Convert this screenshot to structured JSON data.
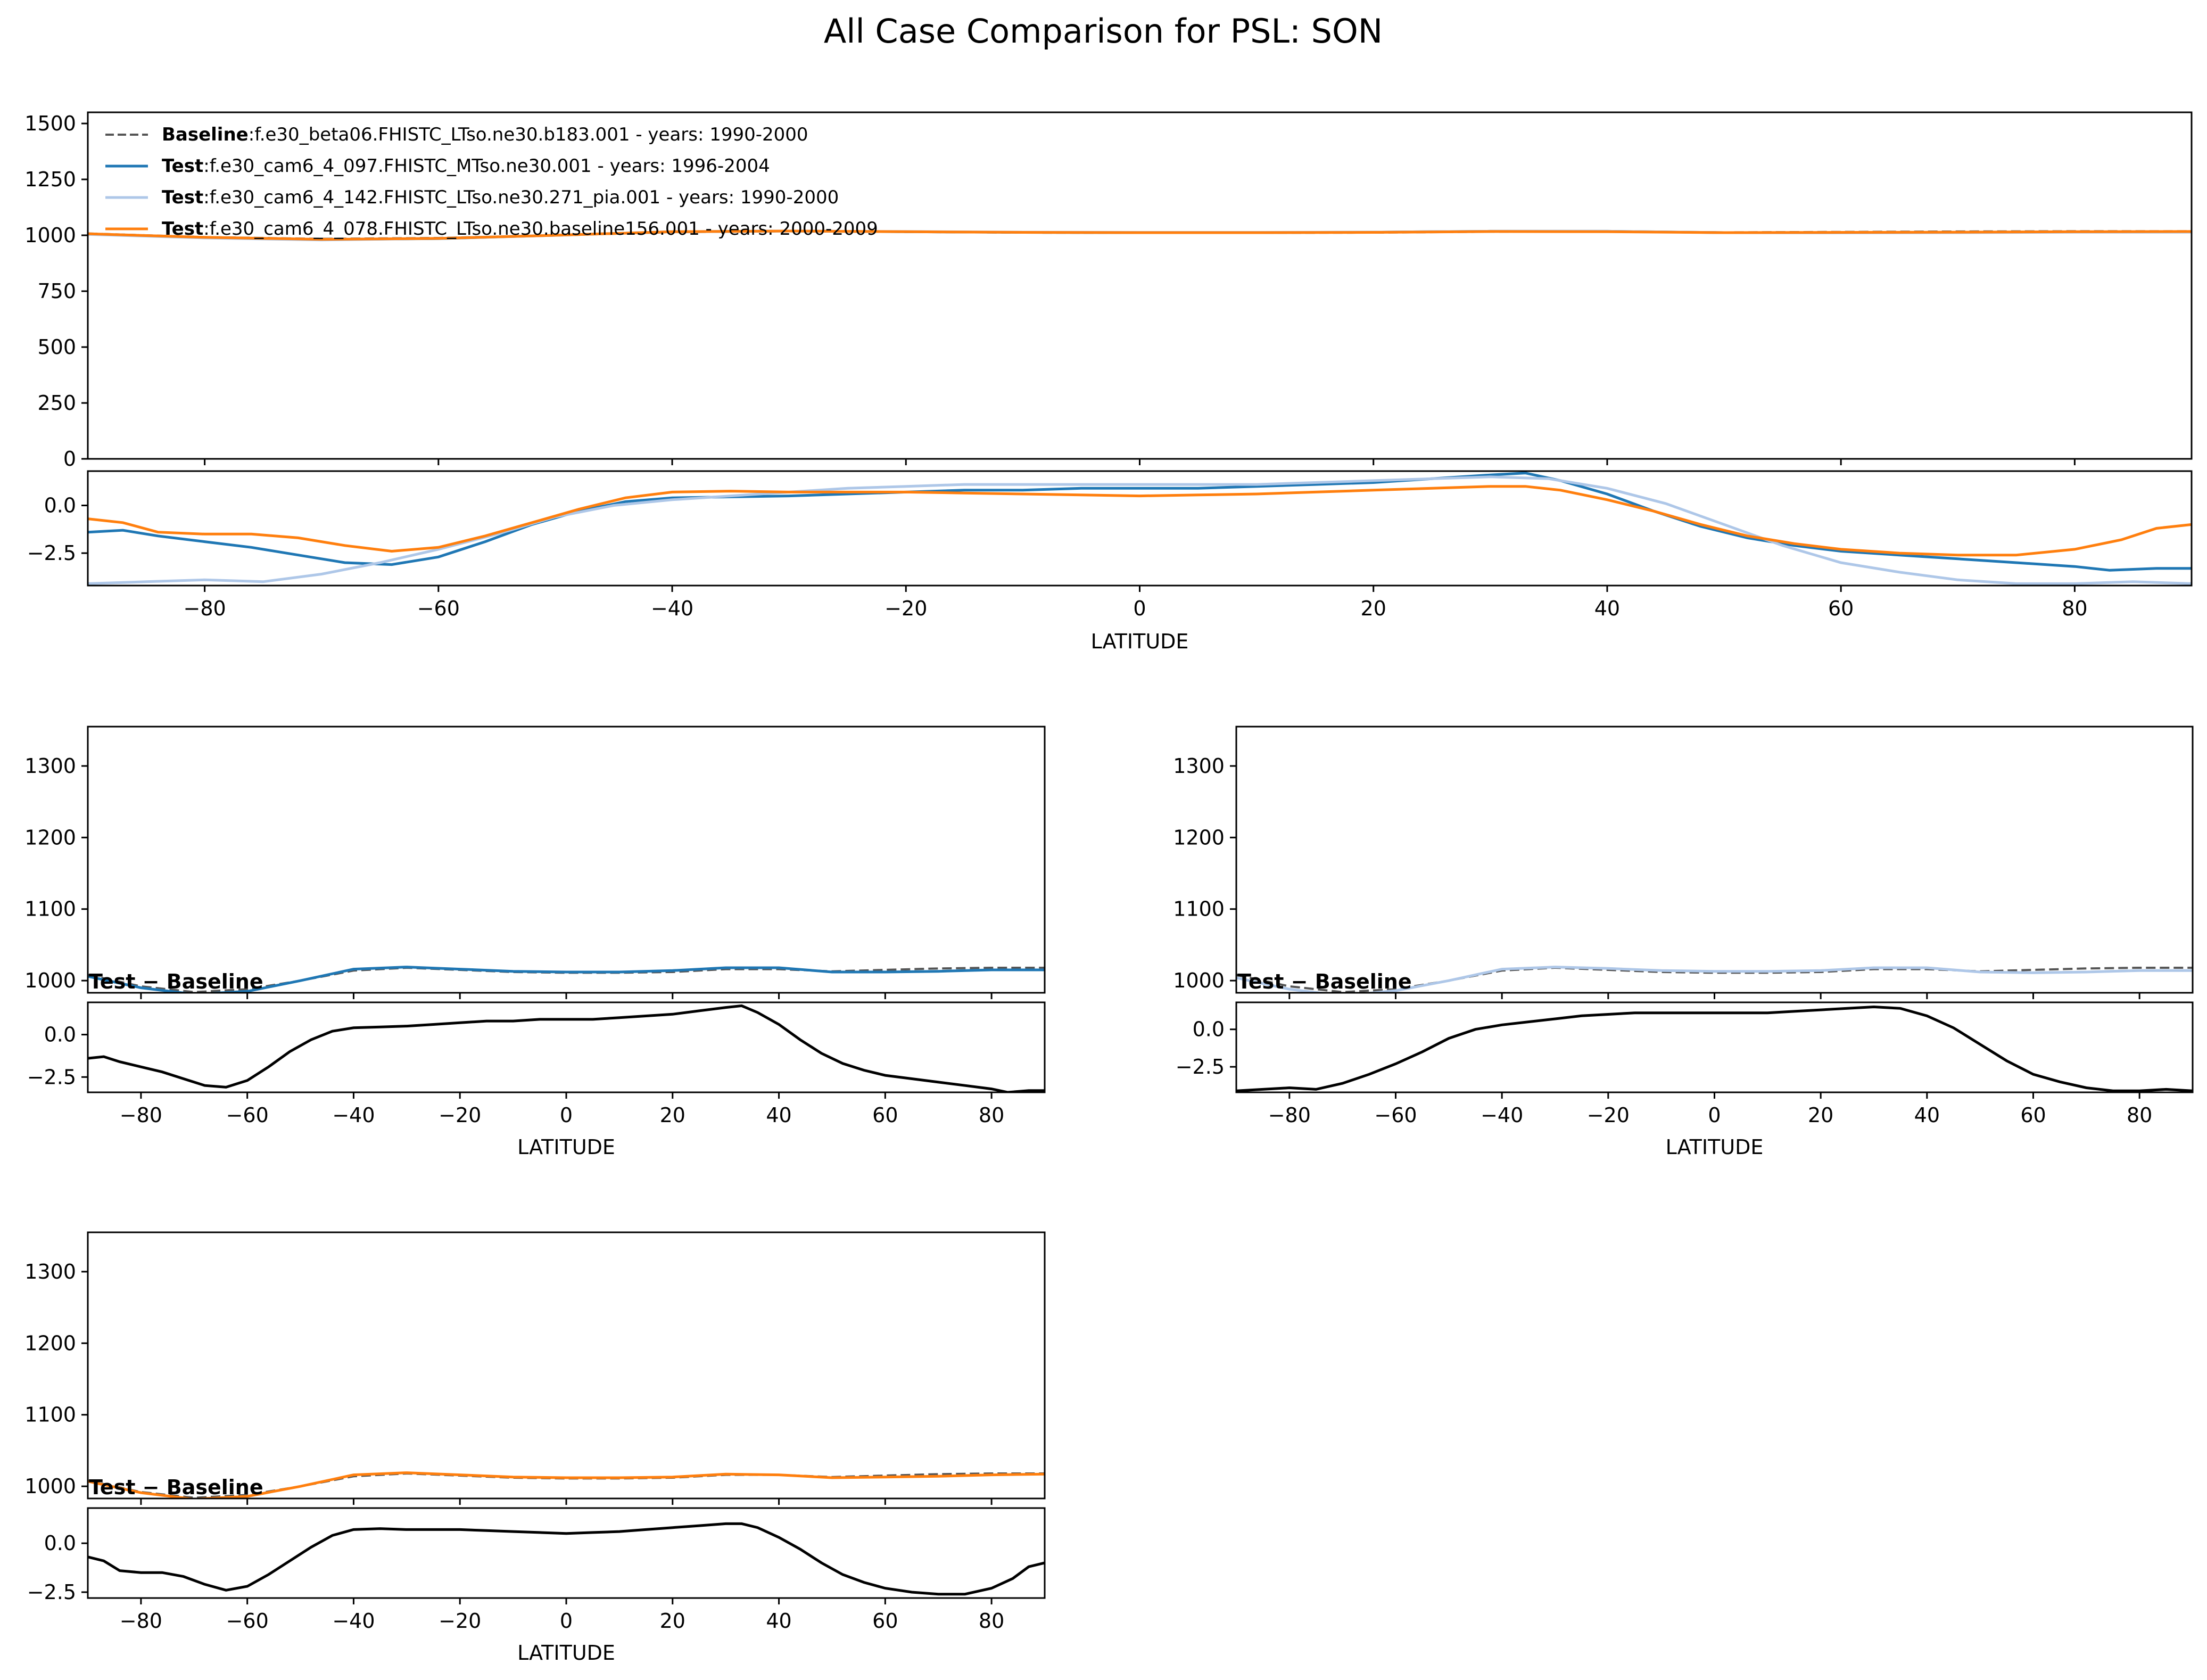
{
  "title": "All Case Comparison for PSL: SON",
  "legend": [
    {
      "role": "Baseline",
      "sep": ":",
      "case": "f.e30_beta06.FHISTC_LTso.ne30.b183.001 - years: 1990-2000",
      "color": "#555555",
      "dash": true
    },
    {
      "role": "Test",
      "sep": ":",
      "case": "f.e30_cam6_4_097.FHISTC_MTso.ne30.001 - years: 1996-2004",
      "color": "#1f77b4",
      "dash": false
    },
    {
      "role": "Test",
      "sep": ":",
      "case": "f.e30_cam6_4_142.FHISTC_LTso.ne30.271_pia.001 - years: 1990-2000",
      "color": "#aec7e8",
      "dash": false
    },
    {
      "role": "Test",
      "sep": ":",
      "case": "f.e30_cam6_4_078.FHISTC_LTso.ne30.baseline156.001 - years: 2000-2009",
      "color": "#ff7f0e",
      "dash": false
    }
  ],
  "annotation": "Test − Baseline",
  "chart_data": [
    {
      "type": "line",
      "panel": "all-cases",
      "xlabel": "LATITUDE",
      "xlim": [
        -90,
        90
      ],
      "xticks": [
        -80,
        -60,
        -40,
        -20,
        0,
        20,
        40,
        60,
        80
      ],
      "ylim": [
        0,
        1550
      ],
      "yticks": [
        0,
        250,
        500,
        750,
        1000,
        1250,
        1500
      ],
      "diff_ylim": [
        -4.2,
        1.8
      ],
      "diff_yticks": [
        0.0,
        -2.5
      ],
      "x": [
        -90,
        -80,
        -70,
        -60,
        -50,
        -40,
        -30,
        -20,
        -10,
        0,
        10,
        20,
        30,
        40,
        50,
        60,
        70,
        80,
        90
      ],
      "series": [
        {
          "name": "Baseline",
          "color": "#555555",
          "dash": true,
          "values": [
            1008,
            992,
            984,
            988,
            1000,
            1014,
            1018,
            1015,
            1012,
            1011,
            1011,
            1012,
            1016,
            1016,
            1013,
            1015,
            1017,
            1018,
            1018
          ]
        },
        {
          "name": "Test",
          "color": "#1f77b4",
          "dash": false,
          "values": [
            1006,
            990,
            981,
            985,
            1000,
            1016,
            1019,
            1016,
            1013,
            1012,
            1012,
            1014,
            1018,
            1018,
            1012,
            1012,
            1013,
            1015,
            1015
          ]
        },
        {
          "name": "Test",
          "color": "#aec7e8",
          "dash": false,
          "values": [
            1004,
            988,
            979,
            986,
            1000,
            1016,
            1019,
            1017,
            1014,
            1013,
            1013,
            1014,
            1018,
            1018,
            1012,
            1011,
            1012,
            1014,
            1014
          ]
        },
        {
          "name": "Test",
          "color": "#ff7f0e",
          "dash": false,
          "values": [
            1007,
            991,
            982,
            986,
            1000,
            1016,
            1019,
            1016,
            1013,
            1012,
            1012,
            1013,
            1017,
            1016,
            1012,
            1013,
            1014,
            1016,
            1017
          ]
        }
      ],
      "diff_series": [
        {
          "color": "#1f77b4",
          "x": [
            -90,
            -87,
            -84,
            -80,
            -76,
            -72,
            -68,
            -64,
            -60,
            -56,
            -52,
            -48,
            -44,
            -40,
            -35,
            -30,
            -25,
            -20,
            -15,
            -10,
            -5,
            0,
            5,
            10,
            15,
            20,
            25,
            30,
            33,
            36,
            40,
            44,
            48,
            52,
            56,
            60,
            65,
            70,
            75,
            80,
            83,
            87,
            90
          ],
          "values": [
            -1.4,
            -1.3,
            -1.6,
            -1.9,
            -2.2,
            -2.6,
            -3.0,
            -3.1,
            -2.7,
            -1.9,
            -1.0,
            -0.3,
            0.2,
            0.4,
            0.45,
            0.5,
            0.6,
            0.7,
            0.8,
            0.8,
            0.9,
            0.9,
            0.9,
            1.0,
            1.1,
            1.2,
            1.4,
            1.6,
            1.7,
            1.3,
            0.6,
            -0.3,
            -1.1,
            -1.7,
            -2.1,
            -2.4,
            -2.6,
            -2.8,
            -3.0,
            -3.2,
            -3.4,
            -3.3,
            -3.3
          ]
        },
        {
          "color": "#aec7e8",
          "x": [
            -90,
            -85,
            -80,
            -75,
            -70,
            -65,
            -60,
            -55,
            -50,
            -45,
            -40,
            -35,
            -30,
            -25,
            -20,
            -15,
            -10,
            -5,
            0,
            5,
            10,
            15,
            20,
            25,
            30,
            35,
            40,
            45,
            50,
            55,
            60,
            65,
            70,
            75,
            80,
            85,
            90
          ],
          "values": [
            -4.1,
            -4.0,
            -3.9,
            -4.0,
            -3.6,
            -3.0,
            -2.3,
            -1.5,
            -0.6,
            0.0,
            0.3,
            0.5,
            0.7,
            0.9,
            1.0,
            1.1,
            1.1,
            1.1,
            1.1,
            1.1,
            1.1,
            1.2,
            1.3,
            1.4,
            1.5,
            1.4,
            0.9,
            0.1,
            -1.0,
            -2.1,
            -3.0,
            -3.5,
            -3.9,
            -4.1,
            -4.1,
            -4.0,
            -4.1
          ]
        },
        {
          "color": "#ff7f0e",
          "x": [
            -90,
            -87,
            -84,
            -80,
            -76,
            -72,
            -68,
            -64,
            -60,
            -56,
            -52,
            -48,
            -44,
            -40,
            -35,
            -30,
            -25,
            -20,
            -15,
            -10,
            -5,
            0,
            5,
            10,
            15,
            20,
            25,
            30,
            33,
            36,
            40,
            44,
            48,
            52,
            56,
            60,
            65,
            70,
            75,
            80,
            84,
            87,
            90
          ],
          "values": [
            -0.7,
            -0.9,
            -1.4,
            -1.5,
            -1.5,
            -1.7,
            -2.1,
            -2.4,
            -2.2,
            -1.6,
            -0.9,
            -0.2,
            0.4,
            0.7,
            0.75,
            0.7,
            0.7,
            0.7,
            0.65,
            0.6,
            0.55,
            0.5,
            0.55,
            0.6,
            0.7,
            0.8,
            0.9,
            1.0,
            1.0,
            0.8,
            0.3,
            -0.3,
            -1.0,
            -1.6,
            -2.0,
            -2.3,
            -2.5,
            -2.6,
            -2.6,
            -2.3,
            -1.8,
            -1.2,
            -1.0
          ]
        }
      ]
    },
    {
      "type": "line",
      "panel": "test-1",
      "xlabel": "LATITUDE",
      "xlim": [
        -90,
        90
      ],
      "xticks": [
        -80,
        -60,
        -40,
        -20,
        0,
        20,
        40,
        60,
        80
      ],
      "ylim": [
        983,
        1355
      ],
      "yticks": [
        1000,
        1100,
        1200,
        1300
      ],
      "diff_ylim": [
        -3.4,
        1.9
      ],
      "diff_yticks": [
        0.0,
        -2.5
      ],
      "x": [
        -90,
        -80,
        -70,
        -60,
        -50,
        -40,
        -30,
        -20,
        -10,
        0,
        10,
        20,
        30,
        40,
        50,
        60,
        70,
        80,
        90
      ],
      "series": [
        {
          "name": "Baseline",
          "color": "#555555",
          "dash": true,
          "values": [
            1008,
            992,
            984,
            988,
            1000,
            1014,
            1018,
            1015,
            1012,
            1011,
            1011,
            1012,
            1016,
            1016,
            1013,
            1015,
            1017,
            1018,
            1018
          ]
        },
        {
          "name": "Test",
          "color": "#1f77b4",
          "dash": false,
          "values": [
            1006,
            990,
            981,
            985,
            1000,
            1016,
            1019,
            1016,
            1013,
            1012,
            1012,
            1014,
            1018,
            1018,
            1012,
            1012,
            1013,
            1015,
            1015
          ]
        }
      ],
      "diff": {
        "color": "#000000",
        "x": [
          -90,
          -87,
          -84,
          -80,
          -76,
          -72,
          -68,
          -64,
          -60,
          -56,
          -52,
          -48,
          -44,
          -40,
          -35,
          -30,
          -25,
          -20,
          -15,
          -10,
          -5,
          0,
          5,
          10,
          15,
          20,
          25,
          30,
          33,
          36,
          40,
          44,
          48,
          52,
          56,
          60,
          65,
          70,
          75,
          80,
          83,
          87,
          90
        ],
        "values": [
          -1.4,
          -1.3,
          -1.6,
          -1.9,
          -2.2,
          -2.6,
          -3.0,
          -3.1,
          -2.7,
          -1.9,
          -1.0,
          -0.3,
          0.2,
          0.4,
          0.45,
          0.5,
          0.6,
          0.7,
          0.8,
          0.8,
          0.9,
          0.9,
          0.9,
          1.0,
          1.1,
          1.2,
          1.4,
          1.6,
          1.7,
          1.3,
          0.6,
          -0.3,
          -1.1,
          -1.7,
          -2.1,
          -2.4,
          -2.6,
          -2.8,
          -3.0,
          -3.2,
          -3.4,
          -3.3,
          -3.3
        ]
      }
    },
    {
      "type": "line",
      "panel": "test-2",
      "xlabel": "LATITUDE",
      "xlim": [
        -90,
        90
      ],
      "xticks": [
        -80,
        -60,
        -40,
        -20,
        0,
        20,
        40,
        60,
        80
      ],
      "ylim": [
        983,
        1355
      ],
      "yticks": [
        1000,
        1100,
        1200,
        1300
      ],
      "diff_ylim": [
        -4.2,
        1.8
      ],
      "diff_yticks": [
        0.0,
        -2.5
      ],
      "x": [
        -90,
        -80,
        -70,
        -60,
        -50,
        -40,
        -30,
        -20,
        -10,
        0,
        10,
        20,
        30,
        40,
        50,
        60,
        70,
        80,
        90
      ],
      "series": [
        {
          "name": "Baseline",
          "color": "#555555",
          "dash": true,
          "values": [
            1008,
            992,
            984,
            988,
            1000,
            1014,
            1018,
            1015,
            1012,
            1011,
            1011,
            1012,
            1016,
            1016,
            1013,
            1015,
            1017,
            1018,
            1018
          ]
        },
        {
          "name": "Test",
          "color": "#aec7e8",
          "dash": false,
          "values": [
            1004,
            988,
            979,
            986,
            1000,
            1016,
            1019,
            1017,
            1014,
            1013,
            1013,
            1014,
            1018,
            1018,
            1012,
            1011,
            1012,
            1014,
            1014
          ]
        }
      ],
      "diff": {
        "color": "#000000",
        "x": [
          -90,
          -85,
          -80,
          -75,
          -70,
          -65,
          -60,
          -55,
          -50,
          -45,
          -40,
          -35,
          -30,
          -25,
          -20,
          -15,
          -10,
          -5,
          0,
          5,
          10,
          15,
          20,
          25,
          30,
          35,
          40,
          45,
          50,
          55,
          60,
          65,
          70,
          75,
          80,
          85,
          90
        ],
        "values": [
          -4.1,
          -4.0,
          -3.9,
          -4.0,
          -3.6,
          -3.0,
          -2.3,
          -1.5,
          -0.6,
          0.0,
          0.3,
          0.5,
          0.7,
          0.9,
          1.0,
          1.1,
          1.1,
          1.1,
          1.1,
          1.1,
          1.1,
          1.2,
          1.3,
          1.4,
          1.5,
          1.4,
          0.9,
          0.1,
          -1.0,
          -2.1,
          -3.0,
          -3.5,
          -3.9,
          -4.1,
          -4.1,
          -4.0,
          -4.1
        ]
      }
    },
    {
      "type": "line",
      "panel": "test-3",
      "xlabel": "LATITUDE",
      "xlim": [
        -90,
        90
      ],
      "xticks": [
        -80,
        -60,
        -40,
        -20,
        0,
        20,
        40,
        60,
        80
      ],
      "ylim": [
        983,
        1355
      ],
      "yticks": [
        1000,
        1100,
        1200,
        1300
      ],
      "diff_ylim": [
        -2.8,
        1.8
      ],
      "diff_yticks": [
        0.0,
        -2.5
      ],
      "x": [
        -90,
        -80,
        -70,
        -60,
        -50,
        -40,
        -30,
        -20,
        -10,
        0,
        10,
        20,
        30,
        40,
        50,
        60,
        70,
        80,
        90
      ],
      "series": [
        {
          "name": "Baseline",
          "color": "#555555",
          "dash": true,
          "values": [
            1008,
            992,
            984,
            988,
            1000,
            1014,
            1018,
            1015,
            1012,
            1011,
            1011,
            1012,
            1016,
            1016,
            1013,
            1015,
            1017,
            1018,
            1018
          ]
        },
        {
          "name": "Test",
          "color": "#ff7f0e",
          "dash": false,
          "values": [
            1007,
            991,
            982,
            986,
            1000,
            1016,
            1019,
            1016,
            1013,
            1012,
            1012,
            1013,
            1017,
            1016,
            1012,
            1013,
            1014,
            1016,
            1017
          ]
        }
      ],
      "diff": {
        "color": "#000000",
        "x": [
          -90,
          -87,
          -84,
          -80,
          -76,
          -72,
          -68,
          -64,
          -60,
          -56,
          -52,
          -48,
          -44,
          -40,
          -35,
          -30,
          -25,
          -20,
          -15,
          -10,
          -5,
          0,
          5,
          10,
          15,
          20,
          25,
          30,
          33,
          36,
          40,
          44,
          48,
          52,
          56,
          60,
          65,
          70,
          75,
          80,
          84,
          87,
          90
        ],
        "values": [
          -0.7,
          -0.9,
          -1.4,
          -1.5,
          -1.5,
          -1.7,
          -2.1,
          -2.4,
          -2.2,
          -1.6,
          -0.9,
          -0.2,
          0.4,
          0.7,
          0.75,
          0.7,
          0.7,
          0.7,
          0.65,
          0.6,
          0.55,
          0.5,
          0.55,
          0.6,
          0.7,
          0.8,
          0.9,
          1.0,
          1.0,
          0.8,
          0.3,
          -0.3,
          -1.0,
          -1.6,
          -2.0,
          -2.3,
          -2.5,
          -2.6,
          -2.6,
          -2.3,
          -1.8,
          -1.2,
          -1.0
        ]
      }
    }
  ]
}
